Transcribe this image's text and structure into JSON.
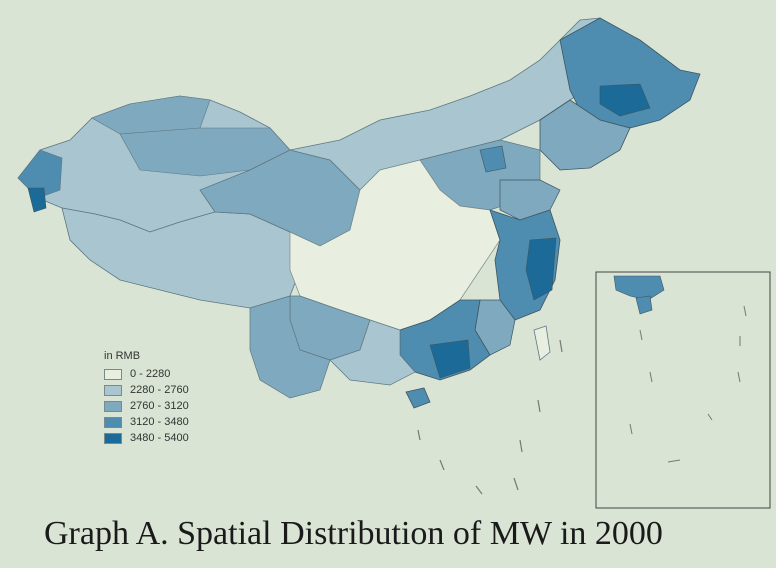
{
  "legend": {
    "title": "in RMB",
    "items": [
      {
        "label": "0 - 2280",
        "color": "#e8efe0"
      },
      {
        "label": "2280 - 2760",
        "color": "#a9c5cf"
      },
      {
        "label": "2760 - 3120",
        "color": "#7fa9bf"
      },
      {
        "label": "3120 - 3480",
        "color": "#4e8cb0"
      },
      {
        "label": "3480 - 5400",
        "color": "#1b6a98"
      }
    ]
  },
  "caption": "Graph A. Spatial Distribution of MW in 2000",
  "colors": {
    "background": "#d9e4d4",
    "outline": "#3e5760",
    "inset_border": "#444444"
  }
}
